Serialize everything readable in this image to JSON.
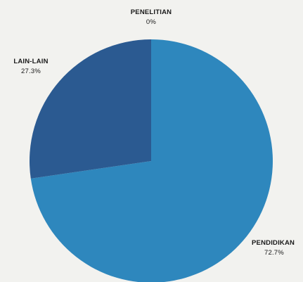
{
  "chart_data": {
    "type": "pie",
    "title": "",
    "legend": "none",
    "slices": [
      {
        "label": "PENELITIAN",
        "value": 0,
        "pct_label": "0%",
        "color": "#3a6fa5"
      },
      {
        "label": "PENDIDIKAN",
        "value": 72.7,
        "pct_label": "72.7%",
        "color": "#2e87bd"
      },
      {
        "label": "LAIN-LAIN",
        "value": 27.3,
        "pct_label": "27.3%",
        "color": "#2b5a91"
      }
    ]
  }
}
